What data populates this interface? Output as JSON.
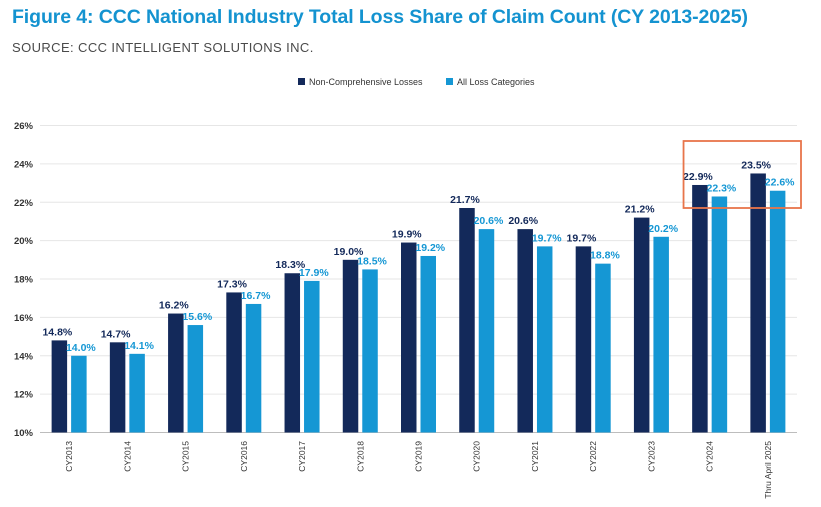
{
  "header": {
    "title": "Figure 4: CCC National Industry Total Loss Share of Claim Count (CY 2013-2025)",
    "source": "SOURCE: CCC INTELLIGENT SOLUTIONS INC."
  },
  "colors": {
    "non_comprehensive": "#13295a",
    "all_loss": "#1597d4",
    "highlight_box": "#e8754a",
    "title": "#1493d0"
  },
  "chart_data": {
    "type": "bar",
    "categories": [
      "CY2013",
      "CY2014",
      "CY2015",
      "CY2016",
      "CY2017",
      "CY2018",
      "CY2019",
      "CY2020",
      "CY2021",
      "CY2022",
      "CY2023",
      "CY2024",
      "Thru April 2025"
    ],
    "series": [
      {
        "name": "Non-Comprehensive Losses",
        "values": [
          14.8,
          14.7,
          16.2,
          17.3,
          18.3,
          19.0,
          19.9,
          21.7,
          20.6,
          19.7,
          21.2,
          22.9,
          23.5
        ],
        "labels": [
          "14.8%",
          "14.7%",
          "16.2%",
          "17.3%",
          "18.3%",
          "19.0%",
          "19.9%",
          "21.7%",
          "20.6%",
          "19.7%",
          "21.2%",
          "22.9%",
          "23.5%"
        ]
      },
      {
        "name": "All Loss Categories",
        "values": [
          14.0,
          14.1,
          15.6,
          16.7,
          17.9,
          18.5,
          19.2,
          20.6,
          19.7,
          18.8,
          20.2,
          22.3,
          22.6
        ],
        "labels": [
          "14.0%",
          "14.1%",
          "15.6%",
          "16.7%",
          "17.9%",
          "18.5%",
          "19.2%",
          "20.6%",
          "19.7%",
          "18.8%",
          "20.2%",
          "22.3%",
          "22.6%"
        ]
      }
    ],
    "ylim": [
      10,
      26
    ],
    "yticks": [
      10,
      12,
      14,
      16,
      18,
      20,
      22,
      24,
      26
    ],
    "ytick_labels": [
      "10%",
      "12%",
      "14%",
      "16%",
      "18%",
      "20%",
      "22%",
      "24%",
      "26%"
    ],
    "grid": true,
    "legend": "top-center",
    "highlighted_categories": [
      "CY2024",
      "Thru April 2025"
    ]
  }
}
